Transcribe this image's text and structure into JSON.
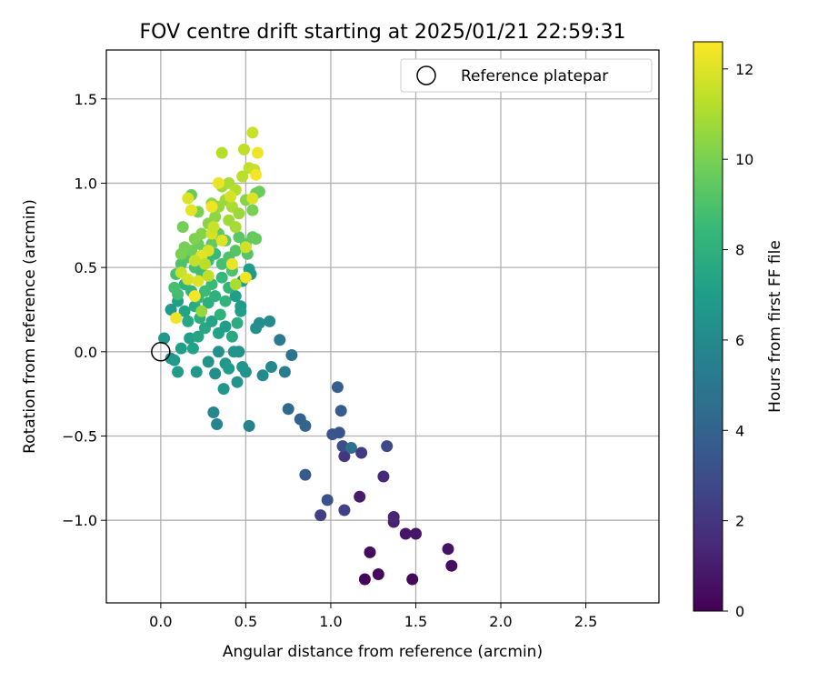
{
  "chart_data": {
    "type": "scatter",
    "title": "FOV centre drift starting at 2025/01/21 22:59:31",
    "xlabel": "Angular distance from reference (arcmin)",
    "ylabel": "Rotation from reference (arcmin)",
    "xlim": [
      -0.32,
      2.93
    ],
    "ylim": [
      -1.49,
      1.79
    ],
    "xticks": [
      0.0,
      0.5,
      1.0,
      1.5,
      2.0,
      2.5
    ],
    "xtick_labels": [
      "0.0",
      "0.5",
      "1.0",
      "1.5",
      "2.0",
      "2.5"
    ],
    "yticks": [
      -1.0,
      -0.5,
      0.0,
      0.5,
      1.0,
      1.5
    ],
    "ytick_labels": [
      "−1.0",
      "−0.5",
      "0.0",
      "0.5",
      "1.0",
      "1.5"
    ],
    "grid": true,
    "legend": {
      "placement": "upper right",
      "entries": [
        "Reference platepar"
      ]
    },
    "reference_point": {
      "x": 0.0,
      "y": 0.0
    },
    "colorbar": {
      "label": "Hours from first FF file",
      "min": 0,
      "max": 12.6,
      "ticks": [
        0,
        2,
        4,
        6,
        8,
        10,
        12
      ],
      "tick_labels": [
        "0",
        "2",
        "4",
        "6",
        "8",
        "10",
        "12"
      ],
      "colormap": [
        "#440154",
        "#482878",
        "#3e4989",
        "#31688e",
        "#26828e",
        "#1f9e89",
        "#35b779",
        "#6ece58",
        "#b5de2b",
        "#fde725"
      ]
    },
    "points": [
      {
        "x": 1.2,
        "y": -1.35,
        "t": 0.2
      },
      {
        "x": 1.28,
        "y": -1.32,
        "t": 0.3
      },
      {
        "x": 1.48,
        "y": -1.35,
        "t": 0.3
      },
      {
        "x": 1.23,
        "y": -1.19,
        "t": 0.4
      },
      {
        "x": 1.71,
        "y": -1.27,
        "t": 0.5
      },
      {
        "x": 1.69,
        "y": -1.17,
        "t": 0.6
      },
      {
        "x": 1.44,
        "y": -1.08,
        "t": 0.7
      },
      {
        "x": 1.5,
        "y": -1.08,
        "t": 0.8
      },
      {
        "x": 1.17,
        "y": -0.86,
        "t": 0.9
      },
      {
        "x": 1.37,
        "y": -1.01,
        "t": 1.1
      },
      {
        "x": 1.37,
        "y": -0.98,
        "t": 1.3
      },
      {
        "x": 1.31,
        "y": -0.74,
        "t": 1.5
      },
      {
        "x": 1.08,
        "y": -0.62,
        "t": 2.0
      },
      {
        "x": 1.18,
        "y": -0.6,
        "t": 2.2
      },
      {
        "x": 0.94,
        "y": -0.97,
        "t": 2.4
      },
      {
        "x": 1.08,
        "y": -0.94,
        "t": 2.5
      },
      {
        "x": 1.33,
        "y": -0.56,
        "t": 2.8
      },
      {
        "x": 1.07,
        "y": -0.56,
        "t": 3.0
      },
      {
        "x": 0.98,
        "y": -0.88,
        "t": 3.2
      },
      {
        "x": 1.05,
        "y": -0.48,
        "t": 3.3
      },
      {
        "x": 1.01,
        "y": -0.49,
        "t": 3.4
      },
      {
        "x": 0.85,
        "y": -0.73,
        "t": 3.5
      },
      {
        "x": 1.06,
        "y": -0.35,
        "t": 3.6
      },
      {
        "x": 1.04,
        "y": -0.21,
        "t": 3.8
      },
      {
        "x": 0.82,
        "y": -0.4,
        "t": 3.9
      },
      {
        "x": 0.85,
        "y": -0.44,
        "t": 4.0
      },
      {
        "x": 0.75,
        "y": -0.34,
        "t": 4.2
      },
      {
        "x": 1.12,
        "y": -0.57,
        "t": 4.6
      },
      {
        "x": 0.77,
        "y": -0.02,
        "t": 4.8
      },
      {
        "x": 0.7,
        "y": 0.07,
        "t": 5.1
      },
      {
        "x": 0.73,
        "y": -0.12,
        "t": 5.4
      },
      {
        "x": 0.52,
        "y": -0.44,
        "t": 5.6
      },
      {
        "x": 0.33,
        "y": -0.43,
        "t": 5.7
      },
      {
        "x": 0.31,
        "y": -0.36,
        "t": 5.8
      },
      {
        "x": 0.65,
        "y": -0.09,
        "t": 5.9
      },
      {
        "x": 0.6,
        "y": -0.14,
        "t": 6.0
      },
      {
        "x": 0.64,
        "y": 0.18,
        "t": 6.1
      },
      {
        "x": 0.58,
        "y": 0.17,
        "t": 6.2
      },
      {
        "x": 0.56,
        "y": 0.14,
        "t": 6.3
      },
      {
        "x": 0.5,
        "y": -0.12,
        "t": 6.4
      },
      {
        "x": 0.45,
        "y": -0.18,
        "t": 6.5
      },
      {
        "x": 0.48,
        "y": -0.09,
        "t": 6.6
      },
      {
        "x": 0.46,
        "y": 0.0,
        "t": 6.4
      },
      {
        "x": 0.43,
        "y": 0.0,
        "t": 6.5
      },
      {
        "x": 0.38,
        "y": -0.07,
        "t": 6.7
      },
      {
        "x": 0.4,
        "y": -0.1,
        "t": 6.8
      },
      {
        "x": 0.37,
        "y": -0.22,
        "t": 6.6
      },
      {
        "x": 0.34,
        "y": 0.0,
        "t": 6.3
      },
      {
        "x": 0.32,
        "y": -0.13,
        "t": 6.2
      },
      {
        "x": 0.28,
        "y": -0.06,
        "t": 6.4
      },
      {
        "x": 0.21,
        "y": -0.12,
        "t": 6.7
      },
      {
        "x": 0.1,
        "y": -0.12,
        "t": 6.9
      },
      {
        "x": 0.06,
        "y": -0.04,
        "t": 6.6
      },
      {
        "x": 0.08,
        "y": -0.05,
        "t": 6.8
      },
      {
        "x": 0.02,
        "y": 0.08,
        "t": 6.7
      },
      {
        "x": 0.12,
        "y": 0.02,
        "t": 7.0
      },
      {
        "x": 0.17,
        "y": 0.08,
        "t": 7.1
      },
      {
        "x": 0.19,
        "y": 0.02,
        "t": 7.2
      },
      {
        "x": 0.22,
        "y": 0.09,
        "t": 7.4
      },
      {
        "x": 0.26,
        "y": 0.14,
        "t": 7.5
      },
      {
        "x": 0.3,
        "y": 0.18,
        "t": 7.3
      },
      {
        "x": 0.34,
        "y": 0.11,
        "t": 7.2
      },
      {
        "x": 0.38,
        "y": 0.15,
        "t": 7.0
      },
      {
        "x": 0.42,
        "y": 0.09,
        "t": 7.6
      },
      {
        "x": 0.45,
        "y": 0.17,
        "t": 7.8
      },
      {
        "x": 0.47,
        "y": 0.24,
        "t": 7.1
      },
      {
        "x": 0.44,
        "y": 0.33,
        "t": 7.0
      },
      {
        "x": 0.48,
        "y": 0.42,
        "t": 6.9
      },
      {
        "x": 0.52,
        "y": 0.49,
        "t": 7.0
      },
      {
        "x": 0.53,
        "y": 0.46,
        "t": 6.8
      },
      {
        "x": 0.47,
        "y": 0.27,
        "t": 6.9
      },
      {
        "x": 0.06,
        "y": 0.25,
        "t": 6.8
      },
      {
        "x": 0.1,
        "y": 0.3,
        "t": 7.1
      },
      {
        "x": 0.14,
        "y": 0.24,
        "t": 7.3
      },
      {
        "x": 0.16,
        "y": 0.18,
        "t": 7.5
      },
      {
        "x": 0.2,
        "y": 0.27,
        "t": 7.7
      },
      {
        "x": 0.23,
        "y": 0.2,
        "t": 7.8
      },
      {
        "x": 0.28,
        "y": 0.29,
        "t": 7.9
      },
      {
        "x": 0.32,
        "y": 0.33,
        "t": 8.0
      },
      {
        "x": 0.35,
        "y": 0.22,
        "t": 8.1
      },
      {
        "x": 0.38,
        "y": 0.3,
        "t": 8.2
      },
      {
        "x": 0.4,
        "y": 0.38,
        "t": 8.3
      },
      {
        "x": 0.36,
        "y": 0.44,
        "t": 8.4
      },
      {
        "x": 0.3,
        "y": 0.4,
        "t": 8.5
      },
      {
        "x": 0.26,
        "y": 0.36,
        "t": 8.6
      },
      {
        "x": 0.22,
        "y": 0.32,
        "t": 8.4
      },
      {
        "x": 0.18,
        "y": 0.36,
        "t": 8.3
      },
      {
        "x": 0.14,
        "y": 0.4,
        "t": 8.2
      },
      {
        "x": 0.1,
        "y": 0.34,
        "t": 8.7
      },
      {
        "x": 0.08,
        "y": 0.38,
        "t": 8.8
      },
      {
        "x": 0.09,
        "y": 0.46,
        "t": 8.9
      },
      {
        "x": 0.12,
        "y": 0.52,
        "t": 9.0
      },
      {
        "x": 0.16,
        "y": 0.56,
        "t": 9.1
      },
      {
        "x": 0.2,
        "y": 0.5,
        "t": 8.9
      },
      {
        "x": 0.24,
        "y": 0.47,
        "t": 8.7
      },
      {
        "x": 0.28,
        "y": 0.54,
        "t": 8.6
      },
      {
        "x": 0.32,
        "y": 0.58,
        "t": 8.5
      },
      {
        "x": 0.36,
        "y": 0.52,
        "t": 8.8
      },
      {
        "x": 0.4,
        "y": 0.56,
        "t": 9.0
      },
      {
        "x": 0.44,
        "y": 0.6,
        "t": 9.2
      },
      {
        "x": 0.46,
        "y": 0.68,
        "t": 9.3
      },
      {
        "x": 0.5,
        "y": 0.64,
        "t": 9.4
      },
      {
        "x": 0.54,
        "y": 0.68,
        "t": 9.5
      },
      {
        "x": 0.56,
        "y": 0.67,
        "t": 9.6
      },
      {
        "x": 0.51,
        "y": 0.58,
        "t": 9.2
      },
      {
        "x": 0.42,
        "y": 0.48,
        "t": 9.0
      },
      {
        "x": 0.38,
        "y": 0.66,
        "t": 9.3
      },
      {
        "x": 0.34,
        "y": 0.7,
        "t": 9.4
      },
      {
        "x": 0.3,
        "y": 0.64,
        "t": 9.5
      },
      {
        "x": 0.26,
        "y": 0.6,
        "t": 9.6
      },
      {
        "x": 0.22,
        "y": 0.64,
        "t": 9.7
      },
      {
        "x": 0.18,
        "y": 0.6,
        "t": 9.8
      },
      {
        "x": 0.14,
        "y": 0.62,
        "t": 9.9
      },
      {
        "x": 0.12,
        "y": 0.58,
        "t": 10.0
      },
      {
        "x": 0.2,
        "y": 0.67,
        "t": 10.1
      },
      {
        "x": 0.24,
        "y": 0.7,
        "t": 10.2
      },
      {
        "x": 0.28,
        "y": 0.76,
        "t": 10.3
      },
      {
        "x": 0.32,
        "y": 0.8,
        "t": 10.4
      },
      {
        "x": 0.3,
        "y": 0.88,
        "t": 10.5
      },
      {
        "x": 0.34,
        "y": 0.86,
        "t": 10.6
      },
      {
        "x": 0.38,
        "y": 0.9,
        "t": 10.7
      },
      {
        "x": 0.4,
        "y": 0.78,
        "t": 10.8
      },
      {
        "x": 0.44,
        "y": 0.74,
        "t": 10.9
      },
      {
        "x": 0.42,
        "y": 0.86,
        "t": 11.0
      },
      {
        "x": 0.46,
        "y": 0.82,
        "t": 10.7
      },
      {
        "x": 0.5,
        "y": 0.9,
        "t": 10.3
      },
      {
        "x": 0.54,
        "y": 0.84,
        "t": 10.0
      },
      {
        "x": 0.56,
        "y": 0.94,
        "t": 9.8
      },
      {
        "x": 0.58,
        "y": 0.95,
        "t": 9.7
      },
      {
        "x": 0.18,
        "y": 0.93,
        "t": 9.6
      },
      {
        "x": 0.13,
        "y": 0.74,
        "t": 9.9
      },
      {
        "x": 0.22,
        "y": 0.83,
        "t": 10.0
      },
      {
        "x": 0.36,
        "y": 0.98,
        "t": 10.8
      },
      {
        "x": 0.4,
        "y": 1.0,
        "t": 11.0
      },
      {
        "x": 0.44,
        "y": 0.96,
        "t": 11.2
      },
      {
        "x": 0.48,
        "y": 1.04,
        "t": 11.3
      },
      {
        "x": 0.52,
        "y": 1.09,
        "t": 11.4
      },
      {
        "x": 0.55,
        "y": 1.08,
        "t": 11.5
      },
      {
        "x": 0.49,
        "y": 1.2,
        "t": 11.4
      },
      {
        "x": 0.54,
        "y": 1.3,
        "t": 11.6
      },
      {
        "x": 0.36,
        "y": 1.18,
        "t": 11.2
      },
      {
        "x": 0.57,
        "y": 1.18,
        "t": 12.3
      },
      {
        "x": 0.56,
        "y": 1.05,
        "t": 12.4
      },
      {
        "x": 0.34,
        "y": 1.0,
        "t": 12.2
      },
      {
        "x": 0.16,
        "y": 0.91,
        "t": 11.9
      },
      {
        "x": 0.18,
        "y": 0.84,
        "t": 12.1
      },
      {
        "x": 0.3,
        "y": 0.86,
        "t": 12.3
      },
      {
        "x": 0.54,
        "y": 0.91,
        "t": 12.0
      },
      {
        "x": 0.3,
        "y": 0.7,
        "t": 11.8
      },
      {
        "x": 0.5,
        "y": 0.62,
        "t": 11.7
      },
      {
        "x": 0.28,
        "y": 0.6,
        "t": 11.9
      },
      {
        "x": 0.24,
        "y": 0.57,
        "t": 12.1
      },
      {
        "x": 0.2,
        "y": 0.54,
        "t": 11.5
      },
      {
        "x": 0.26,
        "y": 0.52,
        "t": 11.3
      },
      {
        "x": 0.42,
        "y": 0.52,
        "t": 12.2
      },
      {
        "x": 0.5,
        "y": 0.44,
        "t": 12.3
      },
      {
        "x": 0.12,
        "y": 0.47,
        "t": 11.6
      },
      {
        "x": 0.16,
        "y": 0.43,
        "t": 11.8
      },
      {
        "x": 0.22,
        "y": 0.42,
        "t": 12.0
      },
      {
        "x": 0.28,
        "y": 0.45,
        "t": 11.4
      },
      {
        "x": 0.44,
        "y": 0.4,
        "t": 11.0
      },
      {
        "x": 0.2,
        "y": 0.33,
        "t": 12.4
      },
      {
        "x": 0.09,
        "y": 0.2,
        "t": 12.3
      },
      {
        "x": 0.24,
        "y": 0.24,
        "t": 10.6
      },
      {
        "x": 0.36,
        "y": 0.66,
        "t": 12.0
      },
      {
        "x": 0.31,
        "y": 0.74,
        "t": 11.6
      },
      {
        "x": 0.41,
        "y": 0.92,
        "t": 11.8
      }
    ]
  }
}
